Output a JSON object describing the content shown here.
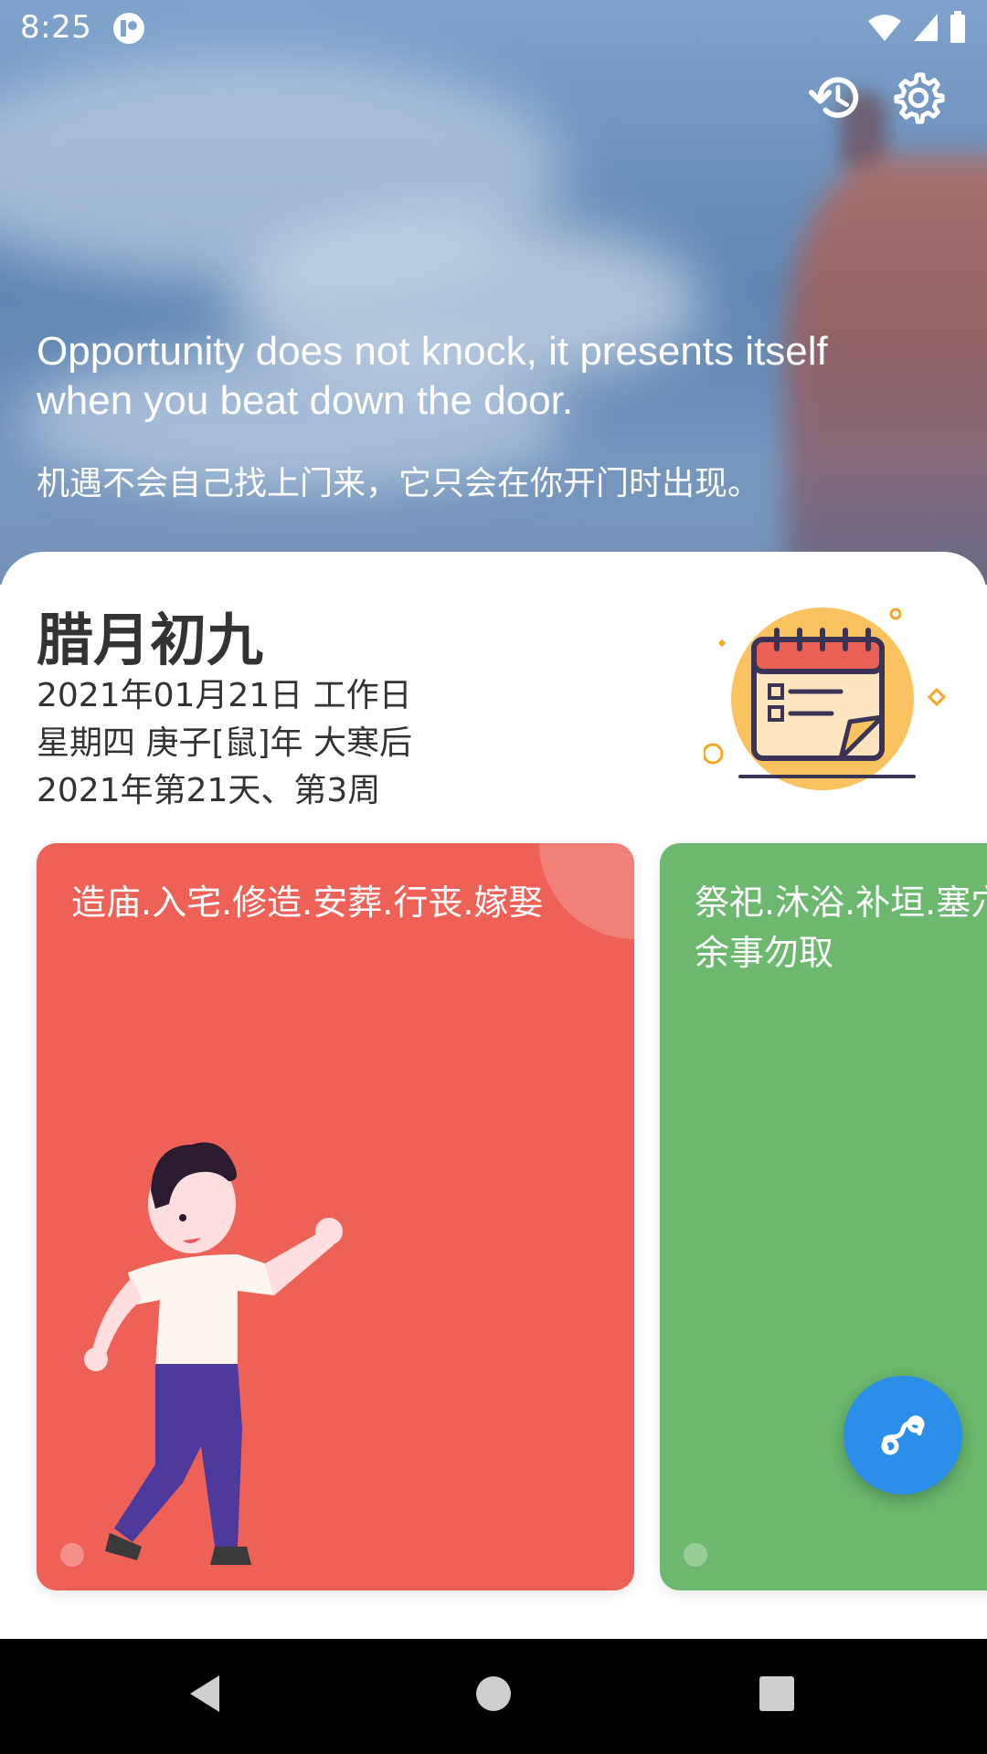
{
  "status_bar": {
    "time": "8:25"
  },
  "quote": {
    "english": "Opportunity does not knock, it presents itself when you beat down the door.",
    "chinese": "机遇不会自己找上门来，它只会在你开门时出现。"
  },
  "date_info": {
    "lunar_date": "腊月初九",
    "gregorian": "2021年01月21日 工作日",
    "weekday_year": "星期四 庚子[鼠]年 大寒后",
    "day_of_year": "2021年第21天、第3周"
  },
  "cards": [
    {
      "text": "造庙.入宅.修造.安葬.行丧.嫁娶",
      "color": "#ee6157"
    },
    {
      "text": "祭祀.沐浴.补垣.塞穴 余事勿取",
      "color": "#6bb86e"
    }
  ],
  "colors": {
    "fab": "#2b8ee8",
    "nav_bg": "#000000"
  },
  "icons": {
    "history": "history-icon",
    "settings": "settings-icon",
    "fab": "link-icon",
    "nav_back": "back-icon",
    "nav_home": "home-icon",
    "nav_recent": "recent-icon"
  }
}
